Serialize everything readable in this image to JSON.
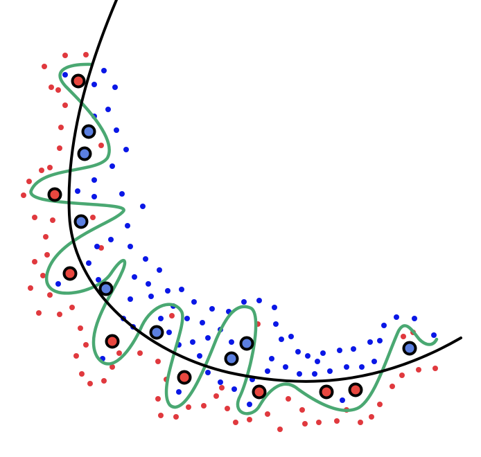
{
  "diagram": {
    "description_tag": "overfitting-vs-smooth-decision-boundary",
    "colors": {
      "background": "#ffffff",
      "class_red": "#e0393e",
      "class_blue": "#0a17e6",
      "class_red_fill": "#e8473f",
      "class_blue_fill": "#5b7fe0",
      "highlight_ring": "#000000",
      "smooth_boundary": "#000000",
      "overfit_boundary": "#4aa872"
    },
    "legend": [],
    "labels": []
  }
}
